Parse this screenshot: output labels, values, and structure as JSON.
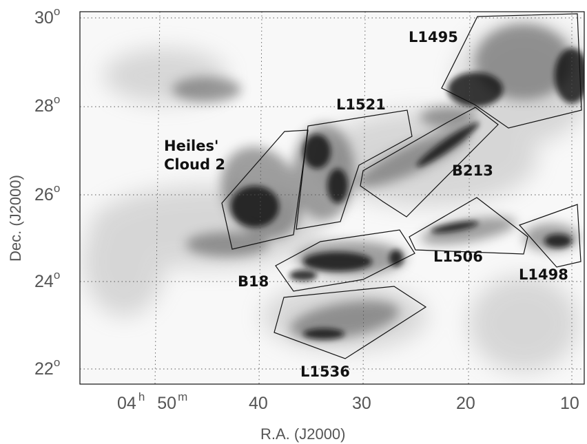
{
  "axes": {
    "xlabel": "R.A. (J2000)",
    "ylabel": "Dec. (J2000)",
    "xticks": [
      {
        "h": "04",
        "h_unit": "h",
        "m": "50",
        "m_unit": "m"
      },
      {
        "label": "40"
      },
      {
        "label": "30"
      },
      {
        "label": "20"
      },
      {
        "label": "10"
      }
    ],
    "yticks": [
      {
        "value": "30",
        "unit": "o"
      },
      {
        "value": "28",
        "unit": "o"
      },
      {
        "value": "26",
        "unit": "o"
      },
      {
        "value": "24",
        "unit": "o"
      },
      {
        "value": "22",
        "unit": "o"
      }
    ],
    "grid": "dotted"
  },
  "regions": [
    {
      "name": "L1495"
    },
    {
      "name": "L1521"
    },
    {
      "name": "Heiles' Cloud 2",
      "lines": [
        "Heiles'",
        "Cloud 2"
      ]
    },
    {
      "name": "B213"
    },
    {
      "name": "L1506"
    },
    {
      "name": "L1498"
    },
    {
      "name": "B18"
    },
    {
      "name": "L1536"
    }
  ],
  "colors": {
    "dust_dark": "#111111",
    "background": "#f7f7f7"
  }
}
